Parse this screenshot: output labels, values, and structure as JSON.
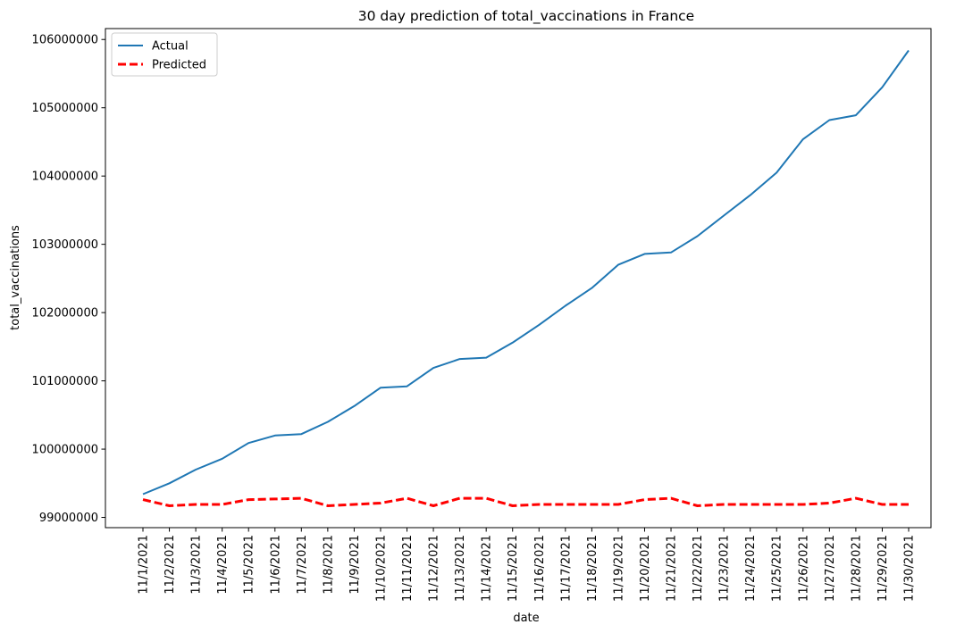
{
  "chart_data": {
    "type": "line",
    "title": "30 day prediction of total_vaccinations in France",
    "xlabel": "date",
    "ylabel": "total_vaccinations",
    "categories": [
      "11/1/2021",
      "11/2/2021",
      "11/3/2021",
      "11/4/2021",
      "11/5/2021",
      "11/6/2021",
      "11/7/2021",
      "11/8/2021",
      "11/9/2021",
      "11/10/2021",
      "11/11/2021",
      "11/12/2021",
      "11/13/2021",
      "11/14/2021",
      "11/15/2021",
      "11/16/2021",
      "11/17/2021",
      "11/18/2021",
      "11/19/2021",
      "11/20/2021",
      "11/21/2021",
      "11/22/2021",
      "11/23/2021",
      "11/24/2021",
      "11/25/2021",
      "11/26/2021",
      "11/27/2021",
      "11/28/2021",
      "11/29/2021",
      "11/30/2021"
    ],
    "yticks": [
      99000000,
      100000000,
      101000000,
      102000000,
      103000000,
      104000000,
      105000000,
      106000000
    ],
    "ytick_labels": [
      "99000000",
      "100000000",
      "101000000",
      "102000000",
      "103000000",
      "104000000",
      "105000000",
      "106000000"
    ],
    "ylim": [
      98850000,
      106160000
    ],
    "grid": false,
    "legend_position": "top-left",
    "series": [
      {
        "name": "Actual",
        "color": "#1f77b4",
        "style": "solid",
        "values": [
          99340000,
          99500000,
          99700000,
          99860000,
          100090000,
          100200000,
          100220000,
          100400000,
          100630000,
          100900000,
          100920000,
          101190000,
          101320000,
          101340000,
          101560000,
          101820000,
          102100000,
          102360000,
          102700000,
          102860000,
          102880000,
          103120000,
          103420000,
          103720000,
          104050000,
          104540000,
          104820000,
          104890000,
          105300000,
          105840000
        ]
      },
      {
        "name": "Predicted",
        "color": "#ff0000",
        "style": "dashed",
        "values": [
          99260000,
          99170000,
          99190000,
          99190000,
          99260000,
          99270000,
          99280000,
          99170000,
          99190000,
          99210000,
          99280000,
          99170000,
          99280000,
          99280000,
          99170000,
          99190000,
          99190000,
          99190000,
          99190000,
          99260000,
          99280000,
          99170000,
          99190000,
          99190000,
          99190000,
          99190000,
          99210000,
          99280000,
          99190000,
          99190000
        ]
      }
    ]
  }
}
